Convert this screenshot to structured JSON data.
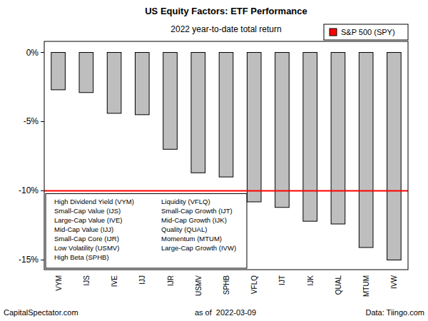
{
  "chart_data": {
    "type": "bar",
    "title": "US Equity Factors: ETF Performance",
    "subtitle": "2022 year-to-date total return",
    "categories": [
      "VYM",
      "IJS",
      "IVE",
      "IJJ",
      "IJR",
      "USMV",
      "SPHB",
      "VFLQ",
      "IJT",
      "IJK",
      "QUAL",
      "MTUM",
      "IVW"
    ],
    "values": [
      -2.7,
      -2.9,
      -4.4,
      -4.5,
      -7.0,
      -8.7,
      -9.0,
      -10.8,
      -11.2,
      -12.2,
      -12.4,
      -14.1,
      -15.0
    ],
    "color": "#bebebe",
    "ylim": [
      -15.7,
      0.8
    ],
    "yticks": [
      {
        "value": 0,
        "label": "0%"
      },
      {
        "value": -5,
        "label": "-5%"
      },
      {
        "value": -10,
        "label": "-10%"
      },
      {
        "value": -15,
        "label": "-15%"
      }
    ],
    "grid": false,
    "legend": "top-right",
    "reference_line": {
      "label": "S&P 500 (SPY)",
      "value": -10.0,
      "color": "#ff0000"
    },
    "key_legend": [
      "High Dividend Yield (VYM)",
      "Small-Cap Value (IJS)",
      "Large-Cap Value (IVE)",
      "Mid-Cap Value (IJJ)",
      "Small-Cap Core (IJR)",
      "Low Volatility (USMV)",
      "High Beta (SPHB)",
      "Liquidity (VFLQ)",
      "Small-Cap Growth (IJT)",
      "Mid-Cap Growth (IJK)",
      "Quality (QUAL)",
      "Momentum (MTUM)",
      "Large-Cap Growth (IVW)"
    ],
    "footer": {
      "left": "CapitalSpectator.com",
      "center": "as of  2022-03-09",
      "right": "Data: Tiingo.com"
    }
  }
}
